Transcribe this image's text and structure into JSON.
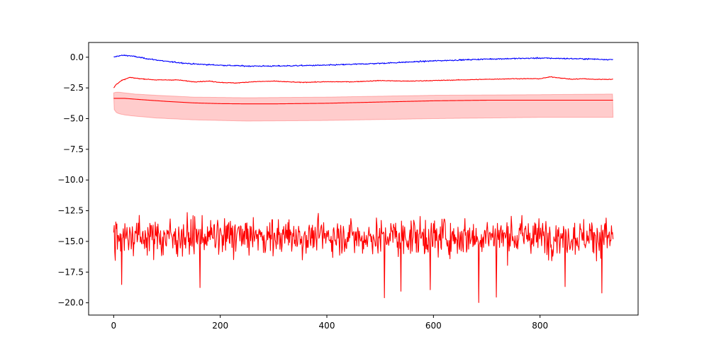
{
  "chart_data": {
    "type": "line",
    "title": "",
    "xlabel": "",
    "ylabel": "",
    "xlim": [
      -47,
      984
    ],
    "ylim": [
      -21.0,
      1.2
    ],
    "grid": false,
    "legend": "none",
    "x_ticks": [
      0,
      200,
      400,
      600,
      800
    ],
    "x_tick_labels": [
      "0",
      "200",
      "400",
      "600",
      "800"
    ],
    "y_ticks": [
      0.0,
      -2.5,
      -5.0,
      -7.5,
      -10.0,
      -12.5,
      -15.0,
      -17.5,
      -20.0
    ],
    "y_tick_labels": [
      "0.0",
      "−2.5",
      "−5.0",
      "−7.5",
      "−10.0",
      "−12.5",
      "−15.0",
      "−17.5",
      "−20.0"
    ],
    "n_points": 938,
    "band": {
      "color": "#ff0000",
      "alpha": 0.2,
      "x": [
        0,
        5,
        10,
        20,
        40,
        80,
        150,
        250,
        400,
        600,
        800,
        937
      ],
      "upper": [
        -2.9,
        -2.85,
        -2.85,
        -2.9,
        -3.0,
        -3.1,
        -3.25,
        -3.3,
        -3.25,
        -3.1,
        -3.05,
        -3.0
      ],
      "lower": [
        -4.2,
        -4.5,
        -4.6,
        -4.7,
        -4.8,
        -4.95,
        -5.1,
        -5.2,
        -5.15,
        -5.0,
        -4.9,
        -4.9
      ]
    },
    "series": [
      {
        "color": "#0000ff",
        "noise": 0.035,
        "x": [
          0,
          10,
          20,
          30,
          40,
          60,
          100,
          150,
          200,
          250,
          300,
          400,
          500,
          600,
          700,
          800,
          900,
          937
        ],
        "y": [
          0.0,
          0.12,
          0.15,
          0.12,
          0.05,
          -0.1,
          -0.35,
          -0.55,
          -0.65,
          -0.72,
          -0.72,
          -0.65,
          -0.5,
          -0.3,
          -0.15,
          -0.07,
          -0.15,
          -0.2
        ]
      },
      {
        "color": "#ff0000",
        "noise": 0.02,
        "x": [
          0,
          5,
          15,
          30,
          50,
          80,
          120,
          150,
          180,
          200,
          230,
          260,
          300,
          350,
          400,
          450,
          500,
          550,
          600,
          650,
          700,
          750,
          800,
          820,
          840,
          860,
          880,
          900,
          937
        ],
        "y": [
          -2.5,
          -2.2,
          -1.9,
          -1.65,
          -1.75,
          -1.85,
          -1.85,
          -2.0,
          -1.95,
          -2.05,
          -2.1,
          -2.0,
          -1.95,
          -2.05,
          -2.0,
          -2.0,
          -1.9,
          -1.95,
          -1.9,
          -1.85,
          -1.8,
          -1.75,
          -1.75,
          -1.6,
          -1.7,
          -1.8,
          -1.75,
          -1.8,
          -1.8
        ]
      },
      {
        "color": "#ff0000",
        "noise": 0.0,
        "x": [
          0,
          20,
          50,
          100,
          150,
          200,
          250,
          300,
          400,
          500,
          600,
          700,
          800,
          900,
          937
        ],
        "y": [
          -3.35,
          -3.35,
          -3.45,
          -3.6,
          -3.72,
          -3.78,
          -3.8,
          -3.8,
          -3.75,
          -3.65,
          -3.55,
          -3.5,
          -3.5,
          -3.5,
          -3.5
        ]
      },
      {
        "color": "#ff0000",
        "noise_mean": -14.6,
        "noise_amplitude": 2.4,
        "y_min": -20.0,
        "y_max": -12.2
      }
    ]
  }
}
